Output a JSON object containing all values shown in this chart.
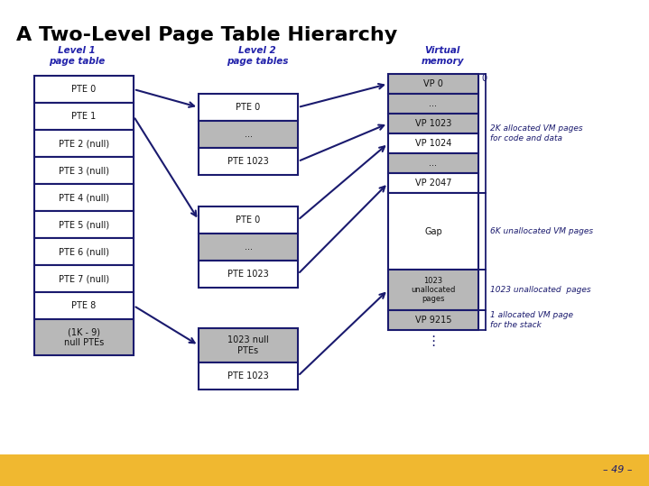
{
  "title": "A Two-Level Page Table Hierarchy",
  "title_fontsize": 16,
  "title_color": "#000000",
  "subtitle_color": "#2222aa",
  "bg_color": "#ffffff",
  "footer_color": "#f0b830",
  "dark_blue": "#1a1a6e",
  "gray_fill": "#b8b8b8",
  "white_fill": "#ffffff",
  "l1_label": "Level 1\npage table",
  "l2_label": "Level 2\npage tables",
  "vm_label": "Virtual\nmemory",
  "l1_entries": [
    "PTE 0",
    "PTE 1",
    "PTE 2 (null)",
    "PTE 3 (null)",
    "PTE 4 (null)",
    "PTE 5 (null)",
    "PTE 6 (null)",
    "PTE 7 (null)",
    "PTE 8",
    "(1K - 9)\nnull PTEs"
  ],
  "l2a_entries": [
    "PTE 0",
    "...",
    "PTE 1023"
  ],
  "l2a_fills": [
    "white",
    "gray",
    "white"
  ],
  "l2b_entries": [
    "PTE 0",
    "...",
    "PTE 1023"
  ],
  "l2b_fills": [
    "white",
    "gray",
    "white"
  ],
  "l2c_entries": [
    "1023 null\nPTEs",
    "PTE 1023"
  ],
  "l2c_fills": [
    "gray",
    "white"
  ],
  "vm_entries": [
    "VP 0",
    "...",
    "VP 1023",
    "VP 1024",
    "...",
    "VP 2047",
    "Gap",
    "1023\nunallocated\npages",
    "VP 9215"
  ],
  "vm_gray": [
    0,
    1,
    2,
    4,
    7,
    8
  ],
  "ann_2k": "2K allocated VM pages\nfor code and data",
  "ann_6k": "6K unallocated VM pages",
  "ann_1023": "1023 unallocated  pages",
  "ann_1": "1 allocated VM page\nfor the stack",
  "page_num": "– 49 –",
  "zero_label": "0"
}
